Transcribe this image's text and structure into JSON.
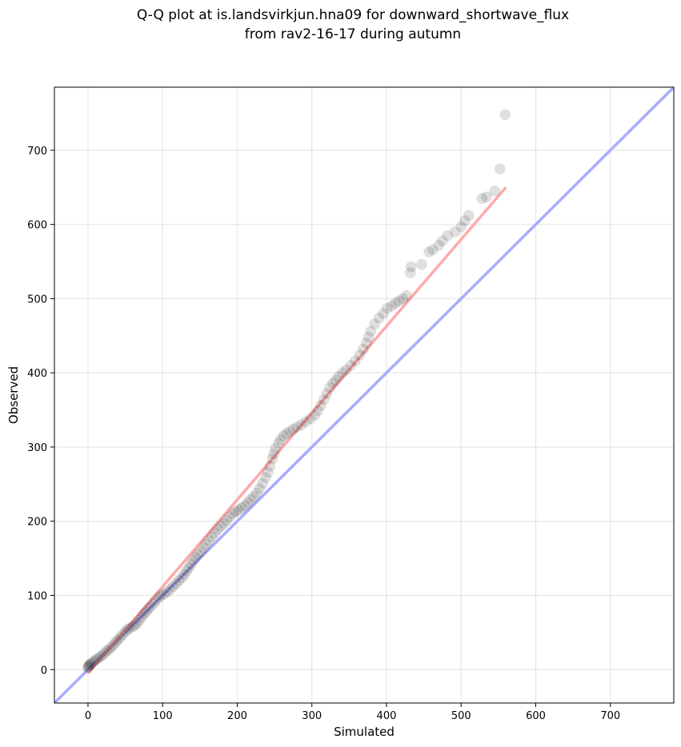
{
  "chart_data": {
    "type": "scatter",
    "title_line1": "Q-Q plot at is.landsvirkjun.hna09 for downward_shortwave_flux",
    "title_line2": "from rav2-16-17 during autumn",
    "xlabel": "Simulated",
    "ylabel": "Observed",
    "xlim": [
      -45,
      785
    ],
    "ylim": [
      -45,
      785
    ],
    "xticks": [
      0,
      100,
      200,
      300,
      400,
      500,
      600,
      700
    ],
    "yticks": [
      0,
      100,
      200,
      300,
      400,
      500,
      600,
      700
    ],
    "grid": true,
    "reference_line": {
      "color": "#aaaaff",
      "from": [
        -45,
        -45
      ],
      "to": [
        785,
        785
      ]
    },
    "fit_line": {
      "color": "#ffaaaa",
      "from": [
        0,
        -5
      ],
      "to": [
        560,
        650
      ]
    },
    "point_color": "#000000",
    "points": [
      [
        0,
        2
      ],
      [
        0,
        4
      ],
      [
        1,
        5
      ],
      [
        2,
        6
      ],
      [
        3,
        7
      ],
      [
        5,
        9
      ],
      [
        8,
        11
      ],
      [
        10,
        13
      ],
      [
        13,
        15
      ],
      [
        16,
        17
      ],
      [
        19,
        19
      ],
      [
        22,
        22
      ],
      [
        25,
        25
      ],
      [
        28,
        27
      ],
      [
        31,
        30
      ],
      [
        34,
        33
      ],
      [
        37,
        37
      ],
      [
        40,
        40
      ],
      [
        43,
        43
      ],
      [
        46,
        47
      ],
      [
        50,
        51
      ],
      [
        53,
        54
      ],
      [
        56,
        56
      ],
      [
        60,
        58
      ],
      [
        63,
        60
      ],
      [
        66,
        63
      ],
      [
        69,
        67
      ],
      [
        72,
        71
      ],
      [
        75,
        75
      ],
      [
        78,
        78
      ],
      [
        81,
        82
      ],
      [
        84,
        85
      ],
      [
        88,
        89
      ],
      [
        91,
        93
      ],
      [
        95,
        97
      ],
      [
        98,
        100
      ],
      [
        102,
        102
      ],
      [
        106,
        105
      ],
      [
        110,
        108
      ],
      [
        114,
        112
      ],
      [
        118,
        116
      ],
      [
        122,
        120
      ],
      [
        126,
        124
      ],
      [
        129,
        128
      ],
      [
        132,
        133
      ],
      [
        135,
        137
      ],
      [
        138,
        142
      ],
      [
        141,
        147
      ],
      [
        144,
        151
      ],
      [
        147,
        155
      ],
      [
        151,
        159
      ],
      [
        155,
        164
      ],
      [
        158,
        169
      ],
      [
        162,
        174
      ],
      [
        166,
        179
      ],
      [
        170,
        184
      ],
      [
        174,
        189
      ],
      [
        178,
        193
      ],
      [
        182,
        197
      ],
      [
        186,
        201
      ],
      [
        190,
        206
      ],
      [
        194,
        210
      ],
      [
        198,
        213
      ],
      [
        202,
        215
      ],
      [
        206,
        218
      ],
      [
        210,
        221
      ],
      [
        214,
        225
      ],
      [
        218,
        229
      ],
      [
        222,
        233
      ],
      [
        226,
        238
      ],
      [
        230,
        244
      ],
      [
        234,
        251
      ],
      [
        238,
        259
      ],
      [
        241,
        266
      ],
      [
        244,
        274
      ],
      [
        247,
        284
      ],
      [
        249,
        291
      ],
      [
        251,
        298
      ],
      [
        255,
        305
      ],
      [
        258,
        310
      ],
      [
        262,
        315
      ],
      [
        266,
        318
      ],
      [
        270,
        321
      ],
      [
        275,
        324
      ],
      [
        280,
        327
      ],
      [
        286,
        330
      ],
      [
        292,
        334
      ],
      [
        298,
        338
      ],
      [
        304,
        343
      ],
      [
        308,
        349
      ],
      [
        312,
        356
      ],
      [
        316,
        364
      ],
      [
        320,
        372
      ],
      [
        324,
        380
      ],
      [
        328,
        386
      ],
      [
        332,
        390
      ],
      [
        336,
        395
      ],
      [
        341,
        400
      ],
      [
        346,
        404
      ],
      [
        352,
        410
      ],
      [
        358,
        416
      ],
      [
        364,
        424
      ],
      [
        369,
        432
      ],
      [
        373,
        440
      ],
      [
        376,
        448
      ],
      [
        379,
        456
      ],
      [
        384,
        466
      ],
      [
        390,
        474
      ],
      [
        396,
        480
      ],
      [
        401,
        487
      ],
      [
        407,
        490
      ],
      [
        412,
        494
      ],
      [
        417,
        497
      ],
      [
        422,
        500
      ],
      [
        427,
        504
      ],
      [
        432,
        535
      ],
      [
        433,
        543
      ],
      [
        447,
        546
      ],
      [
        457,
        563
      ],
      [
        462,
        566
      ],
      [
        470,
        572
      ],
      [
        475,
        578
      ],
      [
        482,
        585
      ],
      [
        492,
        590
      ],
      [
        500,
        597
      ],
      [
        505,
        605
      ],
      [
        510,
        612
      ],
      [
        528,
        635
      ],
      [
        534,
        637
      ],
      [
        545,
        645
      ],
      [
        552,
        675
      ],
      [
        559,
        748
      ]
    ]
  }
}
